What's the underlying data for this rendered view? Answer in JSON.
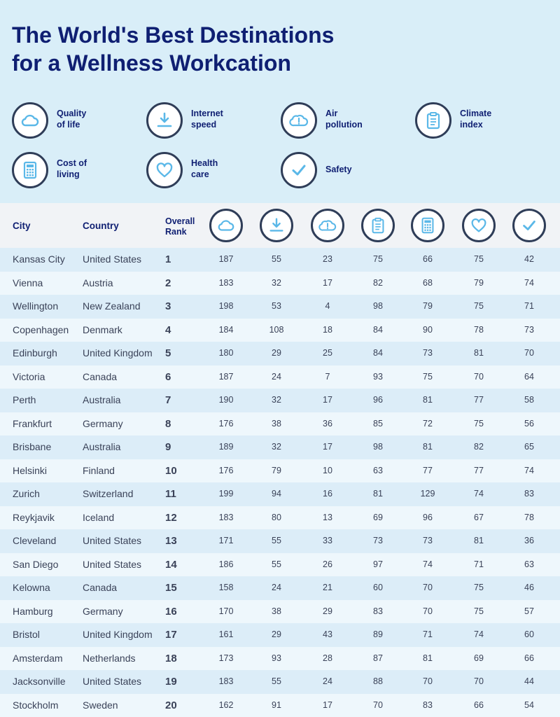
{
  "title": {
    "line1": "The World's Best Destinations",
    "line2": "for a Wellness Workcation"
  },
  "legend": [
    {
      "icon": "cloud-icon",
      "line1": "Quality",
      "line2": "of life"
    },
    {
      "icon": "download-icon",
      "line1": "Internet",
      "line2": "speed"
    },
    {
      "icon": "cloud-alert-icon",
      "line1": "Air",
      "line2": "pollution"
    },
    {
      "icon": "clipboard-icon",
      "line1": "Climate",
      "line2": "index"
    },
    {
      "icon": "calculator-icon",
      "line1": "Cost of",
      "line2": "living"
    },
    {
      "icon": "heart-icon",
      "line1": "Health",
      "line2": "care"
    },
    {
      "icon": "checkmark-icon",
      "line1": "Safety",
      "line2": ""
    }
  ],
  "table": {
    "headers": {
      "city": "City",
      "country": "Country",
      "rank_line1": "Overall",
      "rank_line2": "Rank"
    },
    "rows": [
      {
        "city": "Kansas City",
        "country": "United States",
        "rank": "1",
        "values": [
          "187",
          "55",
          "23",
          "75",
          "66",
          "75",
          "42"
        ]
      },
      {
        "city": "Vienna",
        "country": "Austria",
        "rank": "2",
        "values": [
          "183",
          "32",
          "17",
          "82",
          "68",
          "79",
          "74"
        ]
      },
      {
        "city": "Wellington",
        "country": "New Zealand",
        "rank": "3",
        "values": [
          "198",
          "53",
          "4",
          "98",
          "79",
          "75",
          "71"
        ]
      },
      {
        "city": "Copenhagen",
        "country": "Denmark",
        "rank": "4",
        "values": [
          "184",
          "108",
          "18",
          "84",
          "90",
          "78",
          "73"
        ]
      },
      {
        "city": "Edinburgh",
        "country": "United Kingdom",
        "rank": "5",
        "values": [
          "180",
          "29",
          "25",
          "84",
          "73",
          "81",
          "70"
        ]
      },
      {
        "city": "Victoria",
        "country": "Canada",
        "rank": "6",
        "values": [
          "187",
          "24",
          "7",
          "93",
          "75",
          "70",
          "64"
        ]
      },
      {
        "city": "Perth",
        "country": "Australia",
        "rank": "7",
        "values": [
          "190",
          "32",
          "17",
          "96",
          "81",
          "77",
          "58"
        ]
      },
      {
        "city": "Frankfurt",
        "country": "Germany",
        "rank": "8",
        "values": [
          "176",
          "38",
          "36",
          "85",
          "72",
          "75",
          "56"
        ]
      },
      {
        "city": "Brisbane",
        "country": "Australia",
        "rank": "9",
        "values": [
          "189",
          "32",
          "17",
          "98",
          "81",
          "82",
          "65"
        ]
      },
      {
        "city": "Helsinki",
        "country": "Finland",
        "rank": "10",
        "values": [
          "176",
          "79",
          "10",
          "63",
          "77",
          "77",
          "74"
        ]
      },
      {
        "city": "Zurich",
        "country": "Switzerland",
        "rank": "11",
        "values": [
          "199",
          "94",
          "16",
          "81",
          "129",
          "74",
          "83"
        ]
      },
      {
        "city": "Reykjavik",
        "country": "Iceland",
        "rank": "12",
        "values": [
          "183",
          "80",
          "13",
          "69",
          "96",
          "67",
          "78"
        ]
      },
      {
        "city": "Cleveland",
        "country": "United States",
        "rank": "13",
        "values": [
          "171",
          "55",
          "33",
          "73",
          "73",
          "81",
          "36"
        ]
      },
      {
        "city": "San Diego",
        "country": "United States",
        "rank": "14",
        "values": [
          "186",
          "55",
          "26",
          "97",
          "74",
          "71",
          "63"
        ]
      },
      {
        "city": "Kelowna",
        "country": "Canada",
        "rank": "15",
        "values": [
          "158",
          "24",
          "21",
          "60",
          "70",
          "75",
          "46"
        ]
      },
      {
        "city": "Hamburg",
        "country": "Germany",
        "rank": "16",
        "values": [
          "170",
          "38",
          "29",
          "83",
          "70",
          "75",
          "57"
        ]
      },
      {
        "city": "Bristol",
        "country": "United Kingdom",
        "rank": "17",
        "values": [
          "161",
          "29",
          "43",
          "89",
          "71",
          "74",
          "60"
        ]
      },
      {
        "city": "Amsterdam",
        "country": "Netherlands",
        "rank": "18",
        "values": [
          "173",
          "93",
          "28",
          "87",
          "81",
          "69",
          "66"
        ]
      },
      {
        "city": "Jacksonville",
        "country": "United States",
        "rank": "19",
        "values": [
          "183",
          "55",
          "24",
          "88",
          "70",
          "70",
          "44"
        ]
      },
      {
        "city": "Stockholm",
        "country": "Sweden",
        "rank": "20",
        "values": [
          "162",
          "91",
          "17",
          "70",
          "83",
          "66",
          "54"
        ]
      }
    ]
  },
  "colors": {
    "title": "#0f1f72",
    "top_background": "#d9eef8",
    "icon_accent": "#5bb8e8",
    "icon_border": "#2f3d58"
  }
}
